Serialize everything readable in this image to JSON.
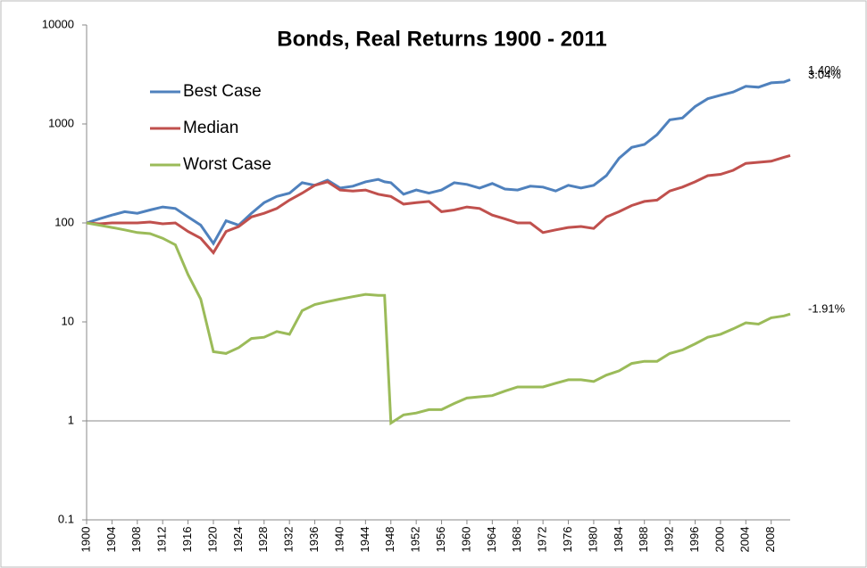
{
  "chart_data": {
    "type": "line",
    "title": "Bonds, Real Returns 1900 - 2011",
    "log_scale": true,
    "x": [
      1900,
      1902,
      1904,
      1906,
      1908,
      1910,
      1912,
      1914,
      1916,
      1918,
      1920,
      1922,
      1924,
      1926,
      1928,
      1930,
      1932,
      1934,
      1936,
      1938,
      1940,
      1942,
      1944,
      1946,
      1947,
      1948,
      1950,
      1952,
      1954,
      1956,
      1958,
      1960,
      1962,
      1964,
      1966,
      1968,
      1970,
      1972,
      1974,
      1976,
      1978,
      1980,
      1982,
      1984,
      1986,
      1988,
      1990,
      1992,
      1994,
      1996,
      1998,
      2000,
      2002,
      2004,
      2006,
      2008,
      2010,
      2011
    ],
    "xlim": [
      1900,
      2011
    ],
    "xticks": [
      1900,
      1904,
      1908,
      1912,
      1916,
      1920,
      1924,
      1928,
      1932,
      1936,
      1940,
      1944,
      1948,
      1952,
      1956,
      1960,
      1964,
      1968,
      1972,
      1976,
      1980,
      1984,
      1988,
      1992,
      1996,
      2000,
      2004,
      2008
    ],
    "ylim": [
      0.1,
      10000
    ],
    "yticks": [
      0.1,
      1,
      10,
      100,
      1000,
      10000
    ],
    "reference_line": 1,
    "legend": "top-left",
    "series": [
      {
        "name": "Best Case",
        "color": "#4f81bd",
        "end_label": "3.04%",
        "values": [
          100,
          110,
          120,
          130,
          125,
          135,
          145,
          140,
          115,
          95,
          62,
          105,
          95,
          125,
          160,
          185,
          200,
          255,
          240,
          270,
          225,
          235,
          260,
          275,
          260,
          255,
          195,
          215,
          200,
          215,
          255,
          245,
          225,
          250,
          220,
          215,
          235,
          230,
          210,
          240,
          225,
          240,
          300,
          450,
          580,
          620,
          780,
          1100,
          1150,
          1500,
          1800,
          1950,
          2100,
          2400,
          2350,
          2600,
          2650,
          2800
        ]
      },
      {
        "name": "Median",
        "color": "#c0504d",
        "end_label": "1.40%",
        "values": [
          100,
          98,
          100,
          100,
          100,
          102,
          98,
          100,
          82,
          70,
          50,
          82,
          92,
          115,
          125,
          140,
          170,
          200,
          240,
          260,
          215,
          210,
          215,
          195,
          190,
          185,
          155,
          160,
          165,
          130,
          135,
          145,
          140,
          120,
          110,
          100,
          100,
          80,
          85,
          90,
          92,
          88,
          115,
          130,
          150,
          165,
          170,
          210,
          230,
          260,
          300,
          310,
          340,
          400,
          410,
          420,
          460,
          480
        ]
      },
      {
        "name": "Worst Case",
        "color": "#9bbb59",
        "end_label": "-1.91%",
        "values": [
          100,
          95,
          90,
          85,
          80,
          78,
          70,
          60,
          30,
          17,
          5,
          4.8,
          5.5,
          6.8,
          7,
          8,
          7.5,
          13,
          15,
          16,
          17,
          18,
          19,
          18.5,
          18.5,
          0.95,
          1.15,
          1.2,
          1.3,
          1.3,
          1.5,
          1.7,
          1.75,
          1.8,
          2,
          2.2,
          2.2,
          2.2,
          2.4,
          2.6,
          2.6,
          2.5,
          2.9,
          3.2,
          3.8,
          4,
          4,
          4.8,
          5.2,
          6,
          7,
          7.5,
          8.5,
          9.8,
          9.5,
          11,
          11.5,
          12
        ]
      }
    ]
  }
}
